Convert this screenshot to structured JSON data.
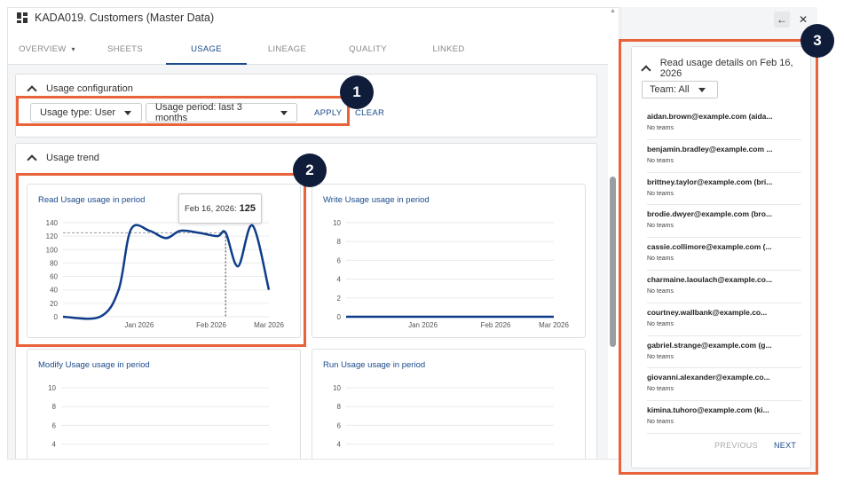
{
  "app": {
    "title": "KADA019. Customers (Master Data)",
    "tabs": [
      {
        "label": "OVERVIEW",
        "caret": "▾",
        "active": false
      },
      {
        "label": "SHEETS",
        "active": false
      },
      {
        "label": "USAGE",
        "active": true
      },
      {
        "label": "LINEAGE",
        "active": false
      },
      {
        "label": "QUALITY",
        "active": false
      },
      {
        "label": "LINKED",
        "active": false
      }
    ]
  },
  "config": {
    "title": "Usage configuration",
    "usage_type": "Usage type: User",
    "usage_period": "Usage period: last 3 months",
    "apply": "APPLY",
    "clear": "CLEAR"
  },
  "trend": {
    "title": "Usage trend",
    "tooltip_date": "Feb 16, 2026:",
    "tooltip_value": "125"
  },
  "chart_data": [
    {
      "type": "line",
      "title": "Read Usage usage in period",
      "x_ticks": [
        "Jan 2026",
        "Feb 2026",
        "Mar 2026"
      ],
      "y_ticks": [
        "0",
        "20",
        "40",
        "60",
        "80",
        "100",
        "120",
        "140"
      ],
      "ylim": [
        0,
        140
      ],
      "series": [
        {
          "values": [
            [
              0,
              0
            ],
            [
              0.18,
              0
            ],
            [
              0.27,
              40
            ],
            [
              0.33,
              130
            ],
            [
              0.42,
              128
            ],
            [
              0.5,
              117
            ],
            [
              0.57,
              128
            ],
            [
              0.66,
              125
            ],
            [
              0.75,
              120
            ],
            [
              0.79,
              125
            ],
            [
              0.85,
              75
            ],
            [
              0.92,
              136
            ],
            [
              1.0,
              40
            ]
          ]
        }
      ],
      "reference_value": 125,
      "reference_label": "Feb 16, 2026"
    },
    {
      "type": "line",
      "title": "Write Usage usage in period",
      "x_ticks": [
        "Jan 2026",
        "Feb 2026",
        "Mar 2026"
      ],
      "y_ticks": [
        "0",
        "2",
        "4",
        "6",
        "8",
        "10"
      ],
      "ylim": [
        0,
        10
      ],
      "series": [
        {
          "values": [
            [
              0,
              0
            ],
            [
              1,
              0
            ]
          ]
        }
      ]
    },
    {
      "type": "line",
      "title": "Modify Usage usage in period",
      "y_ticks": [
        "4",
        "6",
        "8",
        "10"
      ],
      "ylim": [
        0,
        10
      ]
    },
    {
      "type": "line",
      "title": "Run Usage usage in period",
      "y_ticks": [
        "4",
        "6",
        "8",
        "10"
      ],
      "ylim": [
        0,
        10
      ]
    }
  ],
  "side": {
    "title": "Read usage details on Feb 16, 2026",
    "team_filter": "Team: All",
    "users": [
      {
        "email": "aidan.brown@example.com (aida...",
        "teams": "No teams"
      },
      {
        "email": "benjamin.bradley@example.com ...",
        "teams": "No teams"
      },
      {
        "email": "brittney.taylor@example.com (bri...",
        "teams": "No teams"
      },
      {
        "email": "brodie.dwyer@example.com (bro...",
        "teams": "No teams"
      },
      {
        "email": "cassie.collimore@example.com (...",
        "teams": "No teams"
      },
      {
        "email": "charmaine.laoulach@example.co...",
        "teams": "No teams"
      },
      {
        "email": "courtney.wallbank@example.co...",
        "teams": "No teams"
      },
      {
        "email": "gabriel.strange@example.com (g...",
        "teams": "No teams"
      },
      {
        "email": "giovanni.alexander@example.co...",
        "teams": "No teams"
      },
      {
        "email": "kimina.tuhoro@example.com (ki...",
        "teams": "No teams"
      }
    ],
    "previous": "PREVIOUS",
    "next": "NEXT"
  },
  "callouts": [
    "1",
    "2",
    "3"
  ],
  "colors": {
    "accent": "#1a4a8a",
    "highlight": "#e8623a",
    "badge": "#0f1d3a",
    "line": "#0f3c8a"
  }
}
